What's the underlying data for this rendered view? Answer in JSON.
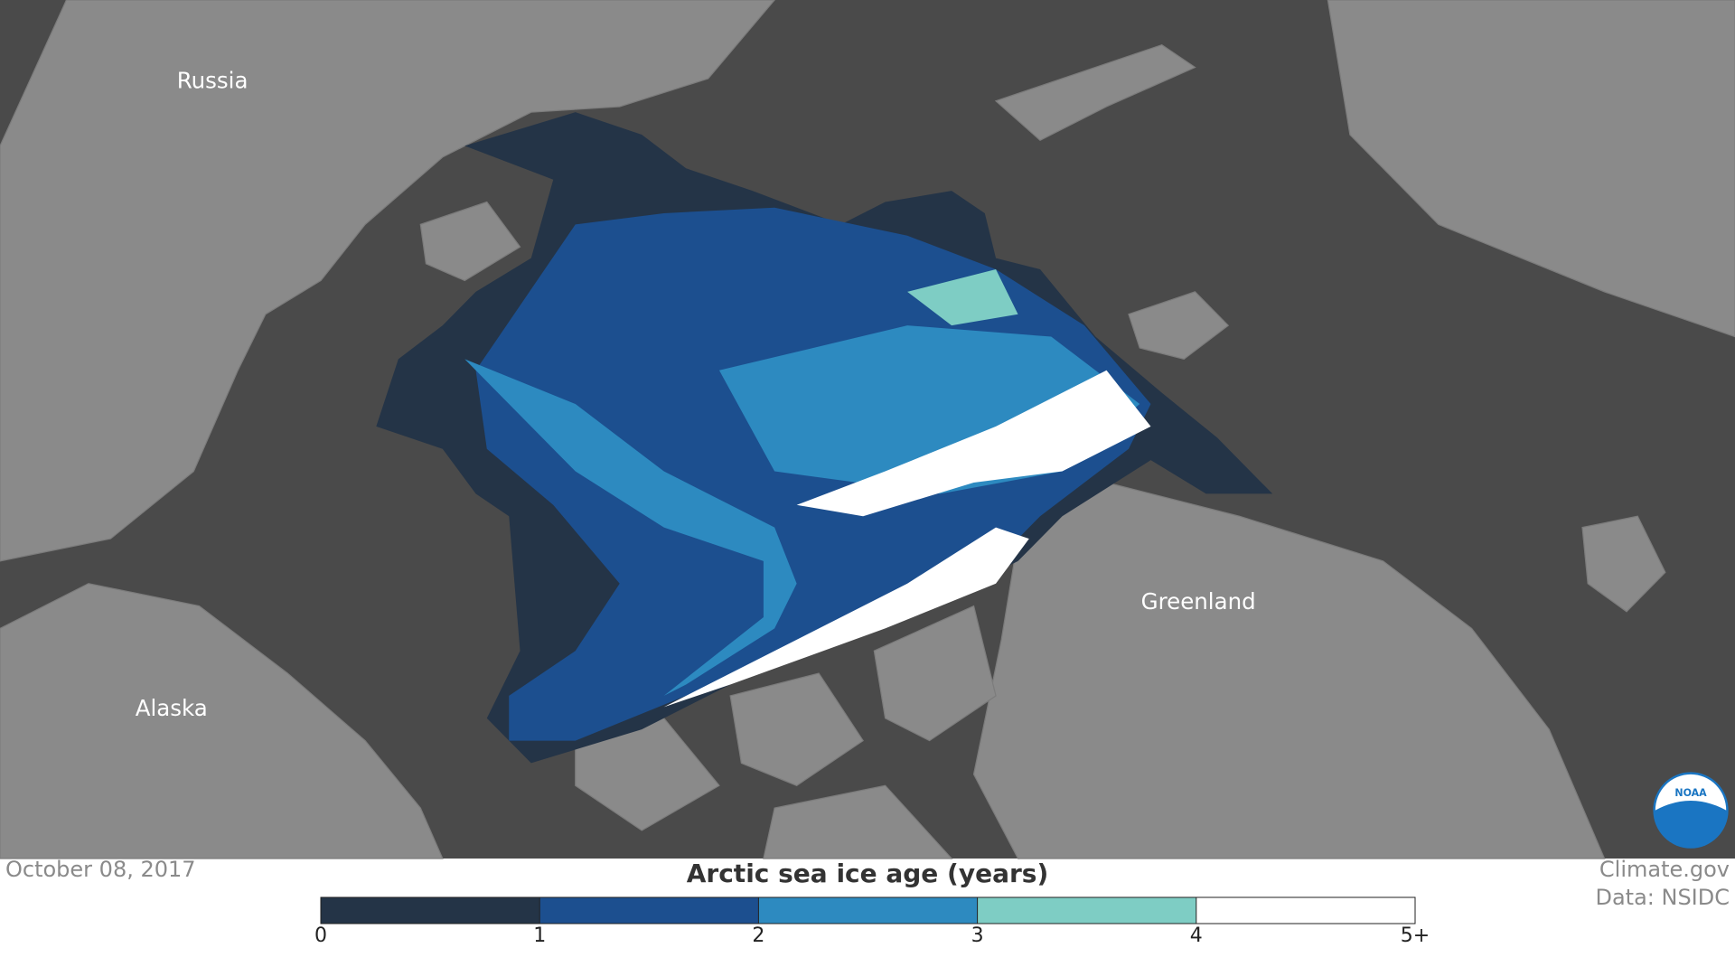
{
  "map": {
    "labels": [
      "Russia",
      "Alaska",
      "Greenland"
    ],
    "date": "October 08, 2017",
    "credit": "Climate.gov",
    "source": "Data: NSIDC",
    "logo": "NOAA"
  },
  "legend": {
    "title": "Arctic sea ice age (years)",
    "ticks": [
      0,
      1,
      2,
      3,
      4,
      {
        "value": 5,
        "label": "5+"
      }
    ],
    "colors": [
      "#243447",
      "#1c4f8f",
      "#2d8ac0",
      "#7ecdc4",
      "#ffffff"
    ]
  }
}
